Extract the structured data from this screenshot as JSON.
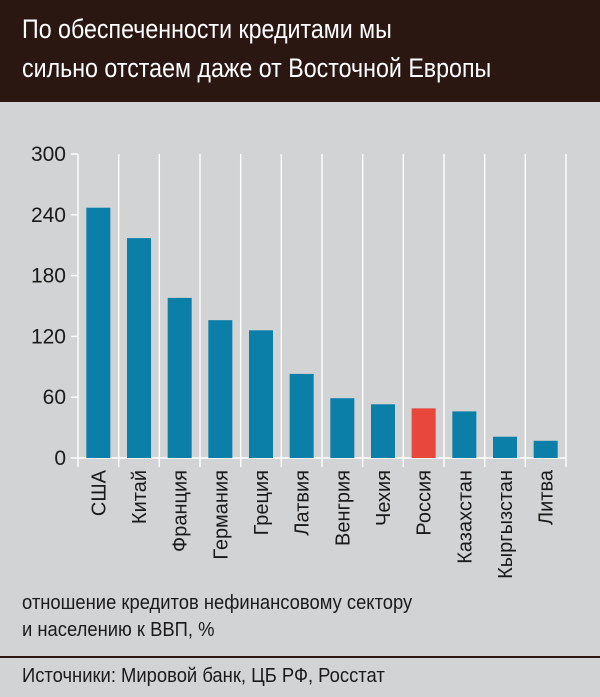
{
  "header": {
    "title_line1": "По обеспеченности кредитами мы",
    "title_line2": "сильно отстаем даже от Восточной Европы"
  },
  "chart_data": {
    "type": "bar",
    "categories": [
      "США",
      "Китай",
      "Франция",
      "Германия",
      "Греция",
      "Латвия",
      "Венгрия",
      "Чехия",
      "Россия",
      "Казахстан",
      "Кыргызстан",
      "Литва"
    ],
    "values": [
      247,
      217,
      158,
      136,
      126,
      83,
      59,
      53,
      49,
      46,
      21,
      17
    ],
    "yticks": [
      0,
      60,
      120,
      180,
      240,
      300
    ],
    "ylim": [
      0,
      300
    ],
    "grid": "vertical separators between categories",
    "bar_color": "#0b7fa8",
    "highlight_color": "#e8473e",
    "highlight_category": "Россия"
  },
  "note": {
    "line1": "отношение кредитов нефинансовому сектору",
    "line2": "и населению к ВВП, %"
  },
  "footer": {
    "source": "Источники:  Мировой банк, ЦБ РФ, Росстат"
  },
  "colors": {
    "header_bg": "#2a1711",
    "panel_bg": "#d1d3d4",
    "axis": "#1a1a1a"
  }
}
